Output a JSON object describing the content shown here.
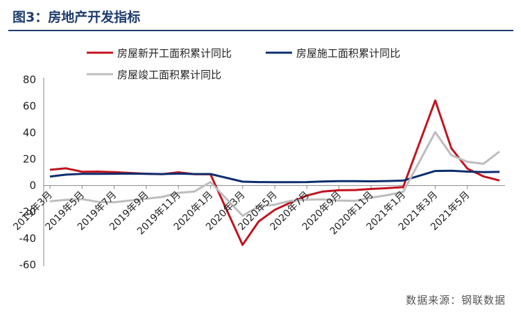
{
  "header": {
    "title": "图3：房地产开发指标"
  },
  "footer": {
    "source": "数据来源：钢联数据"
  },
  "chart_data": {
    "type": "line",
    "title": "图3：房地产开发指标",
    "xlabel": "",
    "ylabel": "",
    "ylim": [
      -60,
      80
    ],
    "yticks": [
      -60,
      -40,
      -20,
      0,
      20,
      40,
      60,
      80
    ],
    "grid": false,
    "legend_position": "top",
    "tick_labels": [
      "2019年3月",
      "2019年5月",
      "2019年7月",
      "2019年9月",
      "2019年11月",
      "2020年1月",
      "2020年3月",
      "2020年5月",
      "2020年7月",
      "2020年9月",
      "2020年11月",
      "2021年1月",
      "2021年3月",
      "2021年5月"
    ],
    "tick_indices": [
      0,
      2,
      4,
      6,
      8,
      10,
      12,
      14,
      16,
      18,
      20,
      22,
      24,
      26
    ],
    "x": [
      "2019-02",
      "2019-03",
      "2019-04",
      "2019-05",
      "2019-06",
      "2019-07",
      "2019-08",
      "2019-09",
      "2019-10",
      "2019-11",
      "2019-12",
      "2020-01",
      "2020-02",
      "2020-03",
      "2020-04",
      "2020-05",
      "2020-06",
      "2020-07",
      "2020-08",
      "2020-09",
      "2020-10",
      "2020-11",
      "2020-12",
      "2021-01",
      "2021-02",
      "2021-03",
      "2021-04",
      "2021-05",
      "2021-06"
    ],
    "series": [
      {
        "name": "房屋新开工面积累计同比",
        "color": "#c0141e",
        "values": [
          11.9,
          13.0,
          10.4,
          10.5,
          10.1,
          9.5,
          8.9,
          8.6,
          10.0,
          8.6,
          8.5,
          null,
          -44.9,
          -27.2,
          -18.4,
          -12.8,
          -7.6,
          -4.5,
          -3.6,
          -3.4,
          -2.6,
          -2.0,
          -1.2,
          null,
          64.3,
          28.2,
          12.8,
          6.9,
          3.8
        ]
      },
      {
        "name": "房屋施工面积累计同比",
        "color": "#0d2d6e",
        "values": [
          6.8,
          8.2,
          8.8,
          8.8,
          8.9,
          9.0,
          8.8,
          8.7,
          9.0,
          8.7,
          8.7,
          null,
          2.9,
          2.6,
          2.5,
          2.5,
          2.6,
          3.1,
          3.3,
          3.3,
          3.2,
          3.4,
          3.7,
          null,
          11.0,
          11.2,
          10.5,
          10.1,
          10.3
        ]
      },
      {
        "name": "房屋竣工面积累计同比",
        "color": "#bdbdbd",
        "values": [
          -11.9,
          -10.8,
          -10.3,
          -12.4,
          -12.7,
          -11.3,
          -10.0,
          -8.6,
          -5.5,
          -4.5,
          2.6,
          null,
          -22.9,
          -15.8,
          -14.5,
          -11.5,
          -10.7,
          -10.5,
          -11.4,
          -11.6,
          -9.2,
          -7.3,
          -4.9,
          null,
          40.4,
          22.9,
          17.9,
          16.4,
          25.7
        ]
      }
    ]
  }
}
